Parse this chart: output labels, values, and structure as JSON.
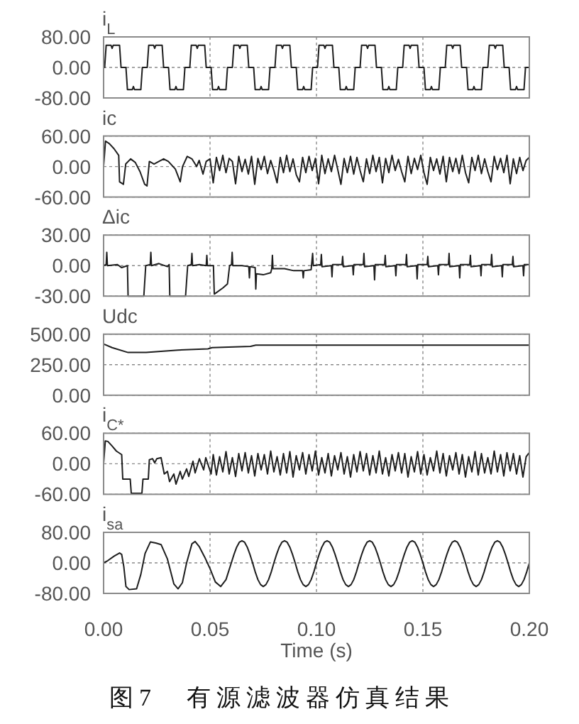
{
  "chart_data": [
    {
      "type": "line",
      "title": "i$_{L}$",
      "xlim": [
        0,
        0.2
      ],
      "xticks": [
        {
          "value": 0,
          "label": null
        },
        {
          "value": 0.05,
          "label": null
        },
        {
          "value": 0.1,
          "label": null
        },
        {
          "value": 0.15,
          "label": null
        },
        {
          "value": 0.2,
          "label": null
        }
      ],
      "ylim": [
        -80,
        80
      ],
      "yticks": [
        {
          "value": -80,
          "label": "-80.00"
        },
        {
          "value": 0,
          "label": "0.00"
        },
        {
          "value": 80,
          "label": "80.00"
        }
      ],
      "grid": true,
      "tick_labels": "y",
      "x": [
        0,
        0.0005,
        0.0012,
        0.0035,
        0.004,
        0.0045,
        0.0075,
        0.0082,
        0.0105,
        0.0112,
        0.0135,
        0.014,
        0.0145,
        0.0175,
        0.0182,
        0.0205,
        0.0212,
        0.0235,
        0.024,
        0.0245,
        0.0275,
        0.0282,
        0.0305,
        0.0312,
        0.0335,
        0.034,
        0.0345,
        0.0375,
        0.0382,
        0.0405,
        0.0412,
        0.0435,
        0.044,
        0.0445,
        0.0475,
        0.0482,
        0.0505,
        0.0512,
        0.0535,
        0.054,
        0.0545,
        0.0575,
        0.0582,
        0.0605,
        0.0612,
        0.0635,
        0.064,
        0.0645,
        0.0675,
        0.0682,
        0.0705,
        0.0712,
        0.0735,
        0.074,
        0.0745,
        0.0775,
        0.0782,
        0.0805,
        0.0812,
        0.0835,
        0.084,
        0.0845,
        0.0875,
        0.0882,
        0.0905,
        0.0912,
        0.0935,
        0.094,
        0.0945,
        0.0975,
        0.0982,
        0.1005,
        0.1012,
        0.1035,
        0.104,
        0.1045,
        0.1075,
        0.1082,
        0.1105,
        0.1112,
        0.1135,
        0.114,
        0.1145,
        0.1175,
        0.1182,
        0.1205,
        0.1212,
        0.1235,
        0.124,
        0.1245,
        0.1275,
        0.1282,
        0.1305,
        0.1312,
        0.1335,
        0.134,
        0.1345,
        0.1375,
        0.1382,
        0.1405,
        0.1412,
        0.1435,
        0.144,
        0.1445,
        0.1475,
        0.1482,
        0.1505,
        0.1512,
        0.1535,
        0.154,
        0.1545,
        0.1575,
        0.1582,
        0.1605,
        0.1612,
        0.1635,
        0.164,
        0.1645,
        0.1675,
        0.1682,
        0.1705,
        0.1712,
        0.1735,
        0.174,
        0.1745,
        0.1775,
        0.1782,
        0.1805,
        0.1812,
        0.1835,
        0.184,
        0.1845,
        0.1875,
        0.1882,
        0.1905,
        0.1912,
        0.1935,
        0.194,
        0.1945,
        0.1975,
        0.1982,
        0.2
      ],
      "series": [
        {
          "color": "#1e1e1e",
          "values": [
            0,
            0,
            58,
            58,
            50,
            58,
            58,
            0,
            0,
            -58,
            -58,
            -50,
            -58,
            -58,
            0,
            0,
            58,
            58,
            50,
            58,
            58,
            0,
            0,
            -58,
            -58,
            -50,
            -58,
            -58,
            0,
            0,
            58,
            58,
            50,
            58,
            58,
            0,
            0,
            -58,
            -58,
            -50,
            -58,
            -58,
            0,
            0,
            58,
            58,
            50,
            58,
            58,
            0,
            0,
            -58,
            -58,
            -50,
            -58,
            -58,
            0,
            0,
            58,
            58,
            50,
            58,
            58,
            0,
            0,
            -58,
            -58,
            -50,
            -58,
            -58,
            0,
            0,
            58,
            58,
            50,
            58,
            58,
            0,
            0,
            -58,
            -58,
            -50,
            -58,
            -58,
            0,
            0,
            58,
            58,
            50,
            58,
            58,
            0,
            0,
            -58,
            -58,
            -50,
            -58,
            -58,
            0,
            0,
            58,
            58,
            50,
            58,
            58,
            0,
            0,
            -58,
            -58,
            -50,
            -58,
            -58,
            0,
            0,
            58,
            58,
            50,
            58,
            58,
            0,
            0,
            -58,
            -58,
            -50,
            -58,
            -58,
            0,
            0,
            58,
            58,
            50,
            58,
            58,
            0,
            0,
            -58,
            -58,
            -50,
            -58,
            -58,
            0,
            0
          ]
        }
      ]
    },
    {
      "type": "line",
      "title": "ic",
      "xlim": [
        0,
        0.2
      ],
      "xticks": [
        {
          "value": 0,
          "label": null
        },
        {
          "value": 0.05,
          "label": null
        },
        {
          "value": 0.1,
          "label": null
        },
        {
          "value": 0.15,
          "label": null
        },
        {
          "value": 0.2,
          "label": null
        }
      ],
      "ylim": [
        -60,
        60
      ],
      "yticks": [
        {
          "value": -60,
          "label": "-60.00"
        },
        {
          "value": 0,
          "label": "0.00"
        },
        {
          "value": 60,
          "label": "60.00"
        }
      ],
      "grid": true,
      "tick_labels": "y",
      "x": [
        0,
        0.0009,
        0.0027,
        0.0049,
        0.0071,
        0.0075,
        0.0093,
        0.0104,
        0.0127,
        0.0149,
        0.0171,
        0.0193,
        0.0204,
        0.0215,
        0.0237,
        0.026,
        0.0282,
        0.0304,
        0.0337,
        0.036,
        0.0371,
        0.0393,
        0.0415,
        0.0437,
        0.0449,
        0.0467,
        0.0482,
        0.05,
        0.0515,
        0.053,
        0.0545,
        0.056,
        0.0575,
        0.059,
        0.0605,
        0.062,
        0.0635,
        0.065,
        0.0665,
        0.068,
        0.0695,
        0.071,
        0.0725,
        0.074,
        0.0755,
        0.077,
        0.0785,
        0.08,
        0.0815,
        0.083,
        0.0845,
        0.086,
        0.0875,
        0.089,
        0.0905,
        0.092,
        0.0935,
        0.095,
        0.0965,
        0.098,
        0.0995,
        0.101,
        0.1025,
        0.104,
        0.1055,
        0.107,
        0.1085,
        0.11,
        0.1115,
        0.113,
        0.1145,
        0.116,
        0.1175,
        0.119,
        0.1205,
        0.122,
        0.1235,
        0.125,
        0.1265,
        0.128,
        0.1295,
        0.131,
        0.1325,
        0.134,
        0.1355,
        0.137,
        0.1385,
        0.14,
        0.1415,
        0.143,
        0.1445,
        0.146,
        0.1475,
        0.149,
        0.1505,
        0.152,
        0.1535,
        0.155,
        0.1565,
        0.158,
        0.1595,
        0.161,
        0.1625,
        0.164,
        0.1655,
        0.167,
        0.1685,
        0.17,
        0.1715,
        0.173,
        0.1745,
        0.176,
        0.1775,
        0.179,
        0.1805,
        0.182,
        0.1835,
        0.185,
        0.1865,
        0.188,
        0.1895,
        0.191,
        0.1925,
        0.194,
        0.1955,
        0.197,
        0.1985,
        0.2
      ],
      "series": [
        {
          "color": "#1e1e1e",
          "values": [
            0,
            50,
            45,
            35,
            22,
            -30,
            -35,
            5,
            15,
            8,
            -10,
            -35,
            -38,
            10,
            5,
            10,
            15,
            10,
            -5,
            -30,
            0,
            20,
            15,
            0,
            12,
            -15,
            10,
            15,
            -32,
            18,
            -8,
            22,
            -12,
            16,
            10,
            -34,
            20,
            -10,
            14,
            -15,
            20,
            -35,
            16,
            -6,
            20,
            -14,
            12,
            -8,
            -32,
            18,
            -12,
            22,
            -10,
            15,
            -16,
            -30,
            18,
            -12,
            20,
            -8,
            16,
            -34,
            22,
            -14,
            15,
            -10,
            22,
            -6,
            -35,
            16,
            -12,
            20,
            -15,
            18,
            -8,
            -30,
            15,
            -14,
            22,
            -10,
            18,
            -32,
            16,
            -12,
            22,
            -8,
            14,
            -10,
            -30,
            20,
            -14,
            16,
            -6,
            22,
            -12,
            -35,
            18,
            -8,
            15,
            -15,
            20,
            -30,
            18,
            -10,
            16,
            -14,
            22,
            -12,
            -32,
            18,
            -8,
            22,
            -14,
            15,
            -10,
            -30,
            20,
            -6,
            16,
            -12,
            22,
            -34,
            15,
            -14,
            18,
            -8,
            12,
            18
          ]
        }
      ]
    },
    {
      "type": "line",
      "title": "Δic",
      "xlim": [
        0,
        0.2
      ],
      "xticks": [
        {
          "value": 0,
          "label": null
        },
        {
          "value": 0.05,
          "label": null
        },
        {
          "value": 0.1,
          "label": null
        },
        {
          "value": 0.15,
          "label": null
        },
        {
          "value": 0.2,
          "label": null
        }
      ],
      "ylim": [
        -30,
        30
      ],
      "yticks": [
        {
          "value": -30,
          "label": "-30.00"
        },
        {
          "value": 0,
          "label": "0.00"
        },
        {
          "value": 30,
          "label": "30.00"
        }
      ],
      "grid": true,
      "tick_labels": "y",
      "x": [
        0,
        0.0012,
        0.0015,
        0.0018,
        0.0065,
        0.0085,
        0.0112,
        0.0115,
        0.0189,
        0.0198,
        0.0219,
        0.0222,
        0.0225,
        0.026,
        0.03,
        0.0308,
        0.0311,
        0.0385,
        0.0395,
        0.0412,
        0.0415,
        0.0418,
        0.045,
        0.0482,
        0.0485,
        0.0488,
        0.0516,
        0.052,
        0.056,
        0.0582,
        0.0592,
        0.0601,
        0.0604,
        0.0607,
        0.065,
        0.0682,
        0.0685,
        0.0688,
        0.0712,
        0.0715,
        0.0718,
        0.075,
        0.0785,
        0.079,
        0.0793,
        0.0796,
        0.085,
        0.0893,
        0.0935,
        0.0938,
        0.0941,
        0.0975,
        0.0982,
        0.0985,
        0.102,
        0.1023,
        0.1026,
        0.107,
        0.1073,
        0.1076,
        0.112,
        0.1123,
        0.1126,
        0.117,
        0.1173,
        0.1176,
        0.122,
        0.1223,
        0.1226,
        0.127,
        0.1273,
        0.1276,
        0.132,
        0.1323,
        0.1326,
        0.137,
        0.1373,
        0.1376,
        0.142,
        0.1423,
        0.1426,
        0.147,
        0.1473,
        0.1476,
        0.152,
        0.1523,
        0.1526,
        0.157,
        0.1573,
        0.1576,
        0.162,
        0.1623,
        0.1626,
        0.167,
        0.1673,
        0.1676,
        0.172,
        0.1723,
        0.1726,
        0.177,
        0.1773,
        0.1776,
        0.182,
        0.1823,
        0.1826,
        0.187,
        0.1873,
        0.1876,
        0.192,
        0.1923,
        0.1926,
        0.197,
        0.1973,
        0.1976,
        0.2
      ],
      "series": [
        {
          "color": "#1e1e1e",
          "values": [
            0,
            1,
            13,
            0,
            1,
            -2,
            0,
            -30,
            -30,
            0,
            1,
            13,
            0,
            2,
            -1,
            1,
            -30,
            -30,
            0,
            1,
            12,
            0,
            1,
            0,
            10,
            0,
            0,
            -28,
            -22,
            -18,
            0,
            1,
            13,
            0,
            0,
            -1,
            -12,
            -1,
            -2,
            -23,
            -8,
            -9,
            -7,
            -3,
            10,
            -3,
            -3,
            -5,
            -5,
            -12,
            -5,
            -4,
            12,
            0,
            1,
            11,
            -1,
            0,
            -11,
            1,
            1,
            9,
            -1,
            0,
            -9,
            1,
            1,
            12,
            -1,
            0,
            -14,
            1,
            1,
            10,
            -1,
            0,
            -10,
            1,
            1,
            11,
            -1,
            0,
            -13,
            1,
            1,
            9,
            -1,
            0,
            -9,
            1,
            1,
            12,
            -1,
            0,
            -12,
            1,
            1,
            10,
            -1,
            0,
            -10,
            1,
            1,
            11,
            -1,
            0,
            -11,
            1,
            1,
            9,
            -1,
            0,
            -10,
            1,
            1
          ]
        }
      ]
    },
    {
      "type": "line",
      "title": "Udc",
      "xlim": [
        0,
        0.2
      ],
      "xticks": [
        {
          "value": 0,
          "label": null
        },
        {
          "value": 0.05,
          "label": null
        },
        {
          "value": 0.1,
          "label": null
        },
        {
          "value": 0.15,
          "label": null
        },
        {
          "value": 0.2,
          "label": null
        }
      ],
      "ylim": [
        0,
        500
      ],
      "yticks": [
        {
          "value": 0,
          "label": "0.00"
        },
        {
          "value": 250,
          "label": "250.00"
        },
        {
          "value": 500,
          "label": "500.00"
        }
      ],
      "grid": true,
      "tick_labels": "y",
      "x": [
        0,
        0.004,
        0.0115,
        0.02,
        0.035,
        0.049,
        0.051,
        0.069,
        0.0715,
        0.1,
        0.15,
        0.2
      ],
      "series": [
        {
          "color": "#1e1e1e",
          "values": [
            420,
            390,
            350,
            350,
            370,
            380,
            390,
            400,
            410,
            410,
            410,
            410
          ]
        }
      ]
    },
    {
      "type": "line",
      "title": "i$_{C*}$",
      "xlim": [
        0,
        0.2
      ],
      "xticks": [
        {
          "value": 0,
          "label": null
        },
        {
          "value": 0.05,
          "label": null
        },
        {
          "value": 0.1,
          "label": null
        },
        {
          "value": 0.15,
          "label": null
        },
        {
          "value": 0.2,
          "label": null
        }
      ],
      "ylim": [
        -60,
        60
      ],
      "yticks": [
        {
          "value": -60,
          "label": "-60.00"
        },
        {
          "value": 0,
          "label": "0.00"
        },
        {
          "value": 60,
          "label": "60.00"
        }
      ],
      "grid": true,
      "tick_labels": "y",
      "x": [
        0,
        0.0008,
        0.002,
        0.004,
        0.006,
        0.0085,
        0.009,
        0.0125,
        0.013,
        0.018,
        0.0185,
        0.021,
        0.0215,
        0.023,
        0.024,
        0.025,
        0.027,
        0.0285,
        0.03,
        0.031,
        0.033,
        0.034,
        0.036,
        0.037,
        0.039,
        0.04,
        0.042,
        0.043,
        0.045,
        0.047,
        0.048,
        0.0505,
        0.0515,
        0.053,
        0.0545,
        0.056,
        0.0575,
        0.059,
        0.0605,
        0.062,
        0.0635,
        0.065,
        0.0665,
        0.068,
        0.0695,
        0.071,
        0.0725,
        0.074,
        0.0755,
        0.077,
        0.0785,
        0.08,
        0.0815,
        0.083,
        0.0845,
        0.086,
        0.0875,
        0.089,
        0.0905,
        0.092,
        0.0935,
        0.095,
        0.0965,
        0.098,
        0.0995,
        0.101,
        0.1025,
        0.104,
        0.1055,
        0.107,
        0.1085,
        0.11,
        0.1115,
        0.113,
        0.1145,
        0.116,
        0.1175,
        0.119,
        0.1205,
        0.122,
        0.1235,
        0.125,
        0.1265,
        0.128,
        0.1295,
        0.131,
        0.1325,
        0.134,
        0.1355,
        0.137,
        0.1385,
        0.14,
        0.1415,
        0.143,
        0.1445,
        0.146,
        0.1475,
        0.149,
        0.1505,
        0.152,
        0.1535,
        0.155,
        0.1565,
        0.158,
        0.1595,
        0.161,
        0.1625,
        0.164,
        0.1655,
        0.167,
        0.1685,
        0.17,
        0.1715,
        0.173,
        0.1745,
        0.176,
        0.1775,
        0.179,
        0.1805,
        0.182,
        0.1835,
        0.185,
        0.1865,
        0.188,
        0.1895,
        0.191,
        0.1925,
        0.194,
        0.1955,
        0.197,
        0.1985,
        0.2
      ],
      "series": [
        {
          "color": "#1e1e1e",
          "values": [
            0,
            45,
            44,
            35,
            25,
            18,
            -30,
            -30,
            -58,
            -58,
            -30,
            -30,
            8,
            10,
            2,
            10,
            12,
            -20,
            -15,
            -35,
            -20,
            -40,
            -15,
            -30,
            -10,
            -25,
            5,
            -18,
            10,
            -12,
            12,
            -20,
            18,
            -22,
            14,
            -16,
            24,
            -20,
            12,
            -25,
            20,
            -14,
            22,
            -18,
            16,
            -24,
            20,
            -12,
            18,
            -20,
            25,
            -16,
            14,
            -22,
            20,
            -18,
            24,
            -26,
            16,
            -12,
            22,
            -20,
            18,
            -14,
            25,
            -22,
            12,
            -18,
            20,
            -24,
            16,
            -12,
            22,
            -20,
            14,
            -26,
            18,
            -16,
            24,
            -14,
            20,
            -22,
            16,
            -18,
            25,
            -20,
            12,
            -24,
            18,
            -14,
            22,
            -18,
            20,
            -26,
            14,
            -16,
            24,
            -20,
            18,
            -22,
            12,
            -14,
            25,
            -18,
            20,
            -24,
            16,
            -12,
            22,
            -20,
            18,
            -26,
            14,
            -16,
            24,
            -22,
            20,
            -18,
            12,
            -20,
            25,
            -16,
            18,
            -24,
            22,
            -14,
            20,
            -20,
            16,
            -26,
            14,
            22
          ]
        }
      ]
    },
    {
      "type": "line",
      "title": "i$_{sa}$",
      "xlabel": "Time (s)",
      "annotations": [
        "图7　有源滤波器仿真结果"
      ],
      "xlim": [
        0,
        0.2
      ],
      "xticks": [
        {
          "value": 0,
          "label": "0.00"
        },
        0.05,
        {
          "value": 0.1,
          "label": "0.10"
        },
        0.15,
        {
          "value": 0.2,
          "label": "0.20"
        }
      ],
      "ylim": [
        -80,
        80
      ],
      "yticks": [
        {
          "value": -80,
          "label": "-80.00"
        },
        {
          "value": 0,
          "label": "0.00"
        },
        {
          "value": 80,
          "label": "80.00"
        }
      ],
      "grid": true,
      "x": [
        0,
        0.002,
        0.005,
        0.0075,
        0.0085,
        0.0095,
        0.0105,
        0.012,
        0.0155,
        0.0175,
        0.0195,
        0.022,
        0.0245,
        0.027,
        0.03,
        0.033,
        0.035,
        0.037,
        0.039,
        0.0415,
        0.043,
        0.045,
        0.0475,
        0.05,
        0.0525,
        0.055,
        0.0575,
        0.06,
        0.06125,
        0.0625,
        0.06375,
        0.065,
        0.06625,
        0.0675,
        0.06875,
        0.07,
        0.07125,
        0.0725,
        0.07375,
        0.075,
        0.07625,
        0.0775,
        0.07875,
        0.08,
        0.08125,
        0.0825,
        0.08375,
        0.085,
        0.08625,
        0.0875,
        0.08875,
        0.09,
        0.09125,
        0.0925,
        0.09375,
        0.095,
        0.09625,
        0.0975,
        0.09875,
        0.1,
        0.10125,
        0.1025,
        0.10375,
        0.105,
        0.10625,
        0.1075,
        0.10875,
        0.11,
        0.11125,
        0.1125,
        0.11375,
        0.115,
        0.11625,
        0.1175,
        0.11875,
        0.12,
        0.12125,
        0.1225,
        0.12375,
        0.125,
        0.12625,
        0.1275,
        0.12875,
        0.13,
        0.13125,
        0.1325,
        0.13375,
        0.135,
        0.13625,
        0.1375,
        0.13875,
        0.14,
        0.14125,
        0.1425,
        0.14375,
        0.145,
        0.14625,
        0.1475,
        0.14875,
        0.15,
        0.15125,
        0.1525,
        0.15375,
        0.155,
        0.15625,
        0.1575,
        0.15875,
        0.16,
        0.16125,
        0.1625,
        0.16375,
        0.165,
        0.16625,
        0.1675,
        0.16875,
        0.17,
        0.17125,
        0.1725,
        0.17375,
        0.175,
        0.17625,
        0.1775,
        0.17875,
        0.18,
        0.18125,
        0.1825,
        0.18375,
        0.185,
        0.18625,
        0.1875,
        0.18875,
        0.19,
        0.19125,
        0.1925,
        0.19375,
        0.195,
        0.19625,
        0.1975,
        0.19875,
        0.2
      ],
      "series": [
        {
          "color": "#1e1e1e",
          "values": [
            0,
            6,
            18,
            26,
            22,
            -10,
            -62,
            -70,
            -68,
            -30,
            25,
            55,
            52,
            48,
            10,
            -55,
            -68,
            -52,
            0,
            50,
            56,
            42,
            15,
            -15,
            -50,
            -62,
            -44,
            0,
            22,
            41,
            54,
            58,
            54,
            41,
            22,
            0,
            -24,
            -44,
            -57,
            -62,
            -57,
            -44,
            -24,
            0,
            22,
            41,
            54,
            58,
            54,
            41,
            22,
            0,
            -24,
            -44,
            -57,
            -62,
            -57,
            -44,
            -24,
            0,
            22,
            41,
            54,
            58,
            54,
            41,
            22,
            0,
            -24,
            -44,
            -57,
            -62,
            -57,
            -44,
            -24,
            0,
            22,
            41,
            54,
            58,
            54,
            41,
            22,
            0,
            -24,
            -44,
            -57,
            -62,
            -57,
            -44,
            -24,
            0,
            22,
            41,
            54,
            58,
            54,
            41,
            22,
            0,
            -24,
            -44,
            -57,
            -62,
            -57,
            -44,
            -24,
            0,
            22,
            41,
            54,
            58,
            54,
            41,
            22,
            0,
            -24,
            -44,
            -57,
            -62,
            -57,
            -44,
            -24,
            0,
            22,
            41,
            54,
            58,
            54,
            41,
            22,
            0,
            -24,
            -44,
            -57,
            -62,
            -57,
            -44,
            -24,
            0
          ]
        }
      ]
    }
  ]
}
